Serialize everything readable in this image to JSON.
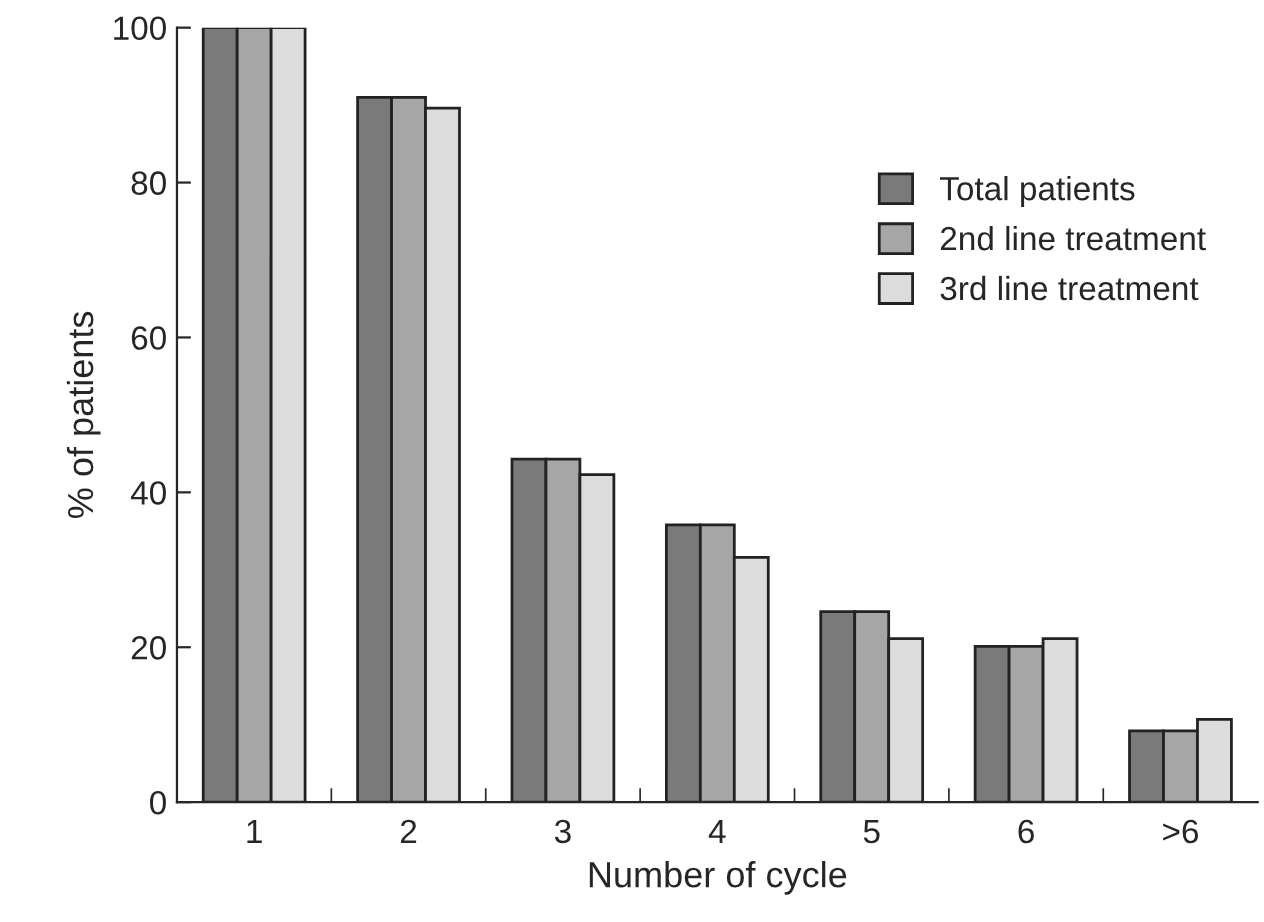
{
  "chart_data": {
    "type": "bar",
    "xlabel": "Number of cycle",
    "ylabel": "% of patients",
    "categories": [
      "1",
      "2",
      "3",
      "4",
      "5",
      "6",
      ">6"
    ],
    "series": [
      {
        "name": "Total patients",
        "color": "#7a7a7a",
        "values": [
          100,
          91,
          44.3,
          35.8,
          24.6,
          20.1,
          9.2
        ]
      },
      {
        "name": "2nd line treatment",
        "color": "#a6a6a6",
        "values": [
          100,
          91,
          44.3,
          35.8,
          24.6,
          20.1,
          9.2
        ]
      },
      {
        "name": "3rd line treatment",
        "color": "#dcdcdc",
        "values": [
          100,
          89.6,
          42.3,
          31.6,
          21.1,
          21.1,
          10.7
        ]
      }
    ],
    "ylim": [
      0,
      100
    ],
    "yticks": [
      0,
      20,
      40,
      60,
      80,
      100
    ],
    "grid": false,
    "legend": "top right"
  }
}
